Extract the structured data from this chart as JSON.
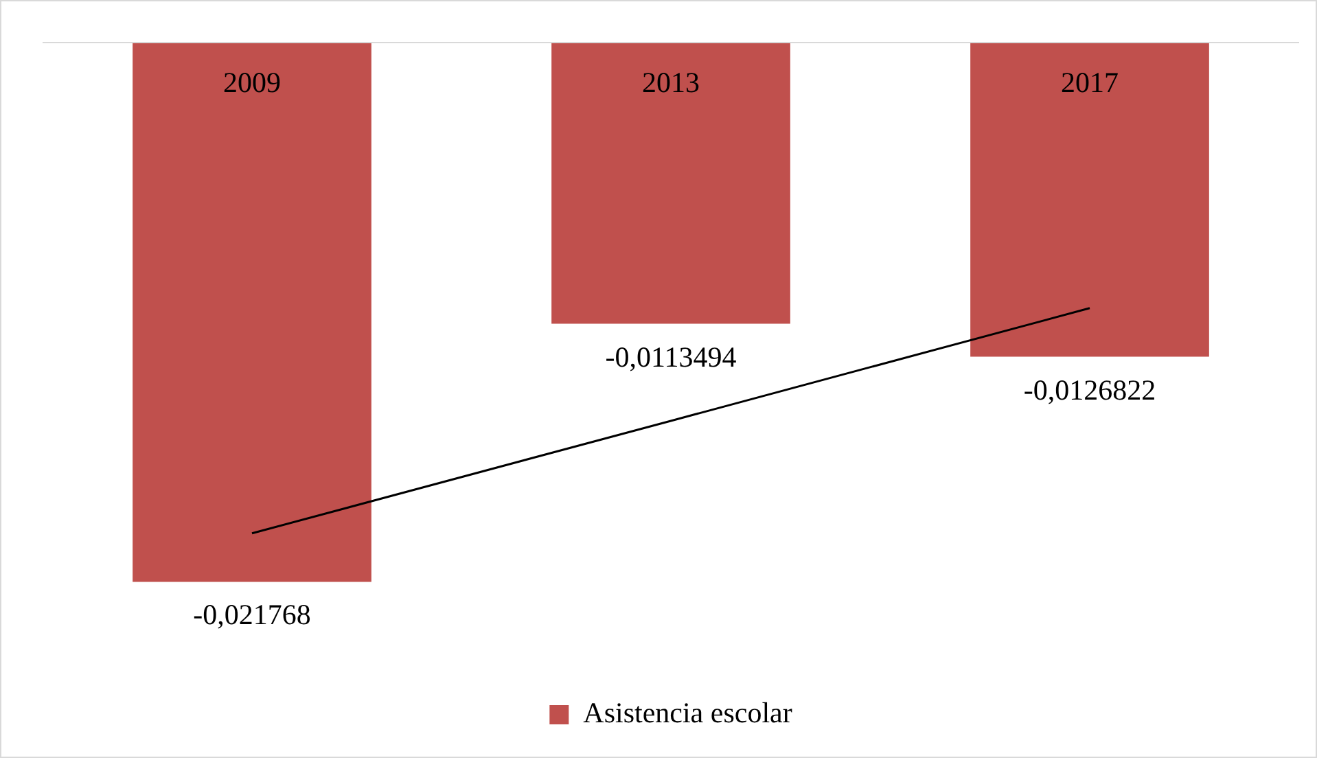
{
  "chart_data": {
    "type": "bar",
    "categories": [
      "2009",
      "2013",
      "2017"
    ],
    "series": [
      {
        "name": "Asistencia escolar",
        "color": "#c0504d",
        "values": [
          -0.021768,
          -0.0113494,
          -0.0126822
        ],
        "value_labels": [
          "-0,021768",
          "-0,0113494",
          "-0,0126822"
        ]
      },
      {
        "type": "line",
        "color": "#000000",
        "values": [
          -0.01981,
          -0.01527,
          -0.01072
        ],
        "marker": "none"
      }
    ],
    "legend": "bottom",
    "tick_labels": "x"
  }
}
